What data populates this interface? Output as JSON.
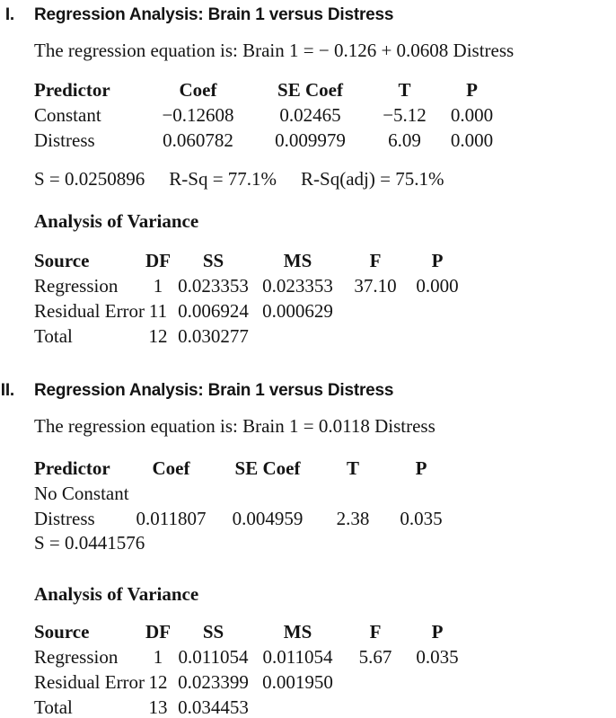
{
  "page": {
    "background_color": "#ffffff",
    "text_color": "#141414"
  },
  "sections": [
    {
      "numeral": "I.",
      "title": "Regression Analysis: Brain 1 versus Distress",
      "equation": "The regression equation is: Brain 1 = − 0.126 + 0.0608 Distress",
      "predictor_table": {
        "headers": [
          "Predictor",
          "Coef",
          "SE Coef",
          "T",
          "P"
        ],
        "rows": [
          [
            "Constant",
            "−0.12608",
            "0.02465",
            "−5.12",
            "0.000"
          ],
          [
            "Distress",
            "0.060782",
            "0.009979",
            "6.09",
            "0.000"
          ]
        ]
      },
      "model_summary": [
        "S = 0.0250896",
        "R-Sq = 77.1%",
        "R-Sq(adj) = 75.1%"
      ],
      "anova_heading": "Analysis of Variance",
      "anova_table": {
        "headers": [
          "Source",
          "DF",
          "SS",
          "MS",
          "F",
          "P"
        ],
        "rows": [
          [
            "Regression",
            "1",
            "0.023353",
            "0.023353",
            "37.10",
            "0.000"
          ],
          [
            "Residual Error",
            "11",
            "0.006924",
            "0.000629",
            "",
            ""
          ],
          [
            "Total",
            "12",
            "0.030277",
            "",
            "",
            ""
          ]
        ]
      }
    },
    {
      "numeral": "II.",
      "title": "Regression Analysis: Brain 1 versus Distress",
      "equation": "The regression equation is: Brain 1 = 0.0118 Distress",
      "predictor_table": {
        "headers": [
          "Predictor",
          "Coef",
          "SE Coef",
          "T",
          "P"
        ],
        "rows": [
          [
            "No Constant",
            "",
            "",
            "",
            ""
          ],
          [
            "Distress",
            "0.011807",
            "0.004959",
            "2.38",
            "0.035"
          ]
        ]
      },
      "model_summary": [
        "S = 0.0441576"
      ],
      "anova_heading": "Analysis of Variance",
      "anova_table": {
        "headers": [
          "Source",
          "DF",
          "SS",
          "MS",
          "F",
          "P"
        ],
        "rows": [
          [
            "Regression",
            "1",
            "0.011054",
            "0.011054",
            "5.67",
            "0.035"
          ],
          [
            "Residual Error",
            "12",
            "0.023399",
            "0.001950",
            "",
            ""
          ],
          [
            "Total",
            "13",
            "0.034453",
            "",
            "",
            ""
          ]
        ]
      }
    }
  ]
}
